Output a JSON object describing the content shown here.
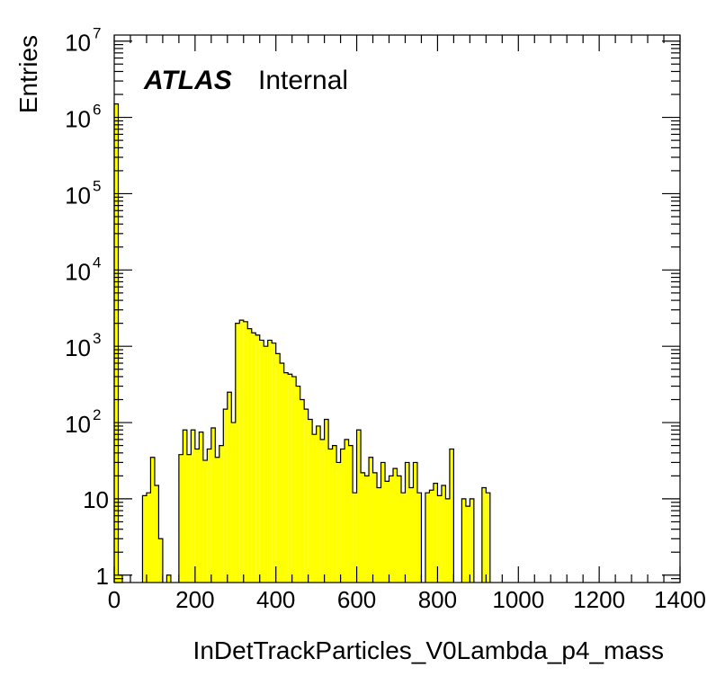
{
  "chart_data": {
    "type": "bar",
    "histogram": true,
    "xlabel": "InDetTrackParticles_V0Lambda_p4_mass",
    "ylabel": "Entries",
    "annotation": {
      "experiment": "ATLAS",
      "status": "Internal"
    },
    "xlim": [
      0,
      1400
    ],
    "ylim": [
      0.8,
      12000000
    ],
    "yscale": "log",
    "bin_width": 10,
    "fill_color": "#ffff00",
    "edge_color": "#000000",
    "x_ticks": [
      "0",
      "200",
      "400",
      "600",
      "800",
      "1000",
      "1200",
      "1400"
    ],
    "y_ticks": [
      {
        "value": 1,
        "base": "1",
        "exp": ""
      },
      {
        "value": 10,
        "base": "10",
        "exp": ""
      },
      {
        "value": 100,
        "base": "10",
        "exp": "2"
      },
      {
        "value": 1000,
        "base": "10",
        "exp": "3"
      },
      {
        "value": 10000,
        "base": "10",
        "exp": "4"
      },
      {
        "value": 100000,
        "base": "10",
        "exp": "5"
      },
      {
        "value": 1000000,
        "base": "10",
        "exp": "6"
      },
      {
        "value": 10000000,
        "base": "10",
        "exp": "7"
      }
    ],
    "bins_x": [
      0,
      10,
      70,
      80,
      90,
      100,
      110,
      130,
      160,
      170,
      180,
      190,
      200,
      210,
      220,
      230,
      240,
      250,
      260,
      270,
      280,
      290,
      300,
      310,
      320,
      330,
      340,
      350,
      360,
      370,
      380,
      390,
      400,
      410,
      420,
      430,
      440,
      450,
      460,
      470,
      480,
      490,
      500,
      510,
      520,
      530,
      540,
      550,
      560,
      570,
      580,
      590,
      600,
      610,
      620,
      630,
      640,
      650,
      660,
      670,
      680,
      690,
      700,
      710,
      720,
      730,
      740,
      750,
      770,
      780,
      790,
      800,
      810,
      820,
      830,
      860,
      870,
      880,
      910,
      920
    ],
    "values": [
      1500000,
      1,
      11,
      12,
      35,
      15,
      3,
      1,
      38,
      80,
      38,
      80,
      45,
      75,
      32,
      45,
      85,
      35,
      50,
      150,
      250,
      100,
      2000,
      2200,
      2100,
      1700,
      1500,
      1400,
      1200,
      1000,
      1200,
      1100,
      800,
      600,
      450,
      430,
      400,
      300,
      200,
      150,
      110,
      70,
      90,
      60,
      110,
      45,
      50,
      30,
      45,
      60,
      50,
      12,
      80,
      22,
      20,
      35,
      22,
      14,
      30,
      17,
      20,
      25,
      20,
      12,
      30,
      14,
      30,
      12,
      12,
      13,
      16,
      11,
      15,
      10,
      45,
      10,
      8,
      10,
      14,
      12
    ]
  }
}
